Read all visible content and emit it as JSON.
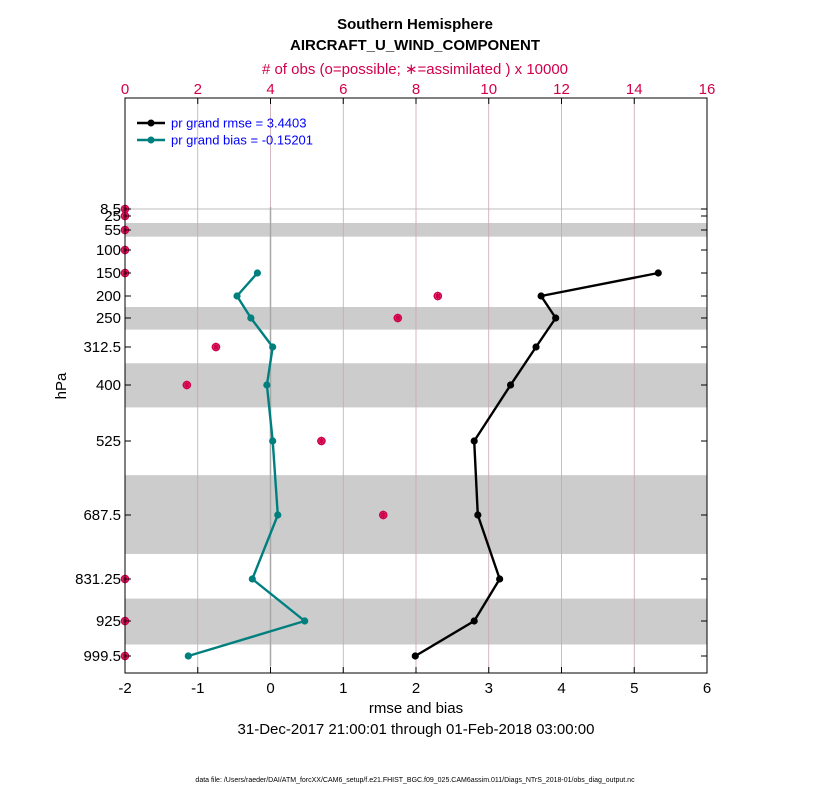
{
  "chart_data": {
    "type": "line",
    "title": "Southern Hemisphere",
    "subtitle": "AIRCRAFT_U_WIND_COMPONENT",
    "top_axis_label": "# of obs (o=possible; ∗=assimilated ) x 10000",
    "xlabel": "rmse and bias",
    "ylabel": "hPa",
    "date_range": "31-Dec-2017 21:00:01 through 01-Feb-2018 03:00:00",
    "footnote": "data file: /Users/raeder/DAI/ATM_forcXX/CAM6_setup/f.e21.FHIST_BGC.f09_025.CAM6assim.011/Diags_NTrS_2018-01/obs_diag_output.nc",
    "xlim": [
      -2,
      6
    ],
    "x_ticks": [
      "-2",
      "-1",
      "0",
      "1",
      "2",
      "3",
      "4",
      "5",
      "6"
    ],
    "top_xlim": [
      0,
      16
    ],
    "top_ticks": [
      "0",
      "2",
      "4",
      "6",
      "8",
      "10",
      "12",
      "14",
      "16"
    ],
    "levels": [
      8.5,
      25,
      55,
      100,
      150,
      200,
      250,
      312.5,
      400,
      525,
      687.5,
      831.25,
      925,
      999.5
    ],
    "level_labels": [
      "8.5",
      "25",
      "55",
      "100",
      "150",
      "200",
      "250",
      "312.5",
      "400",
      "525",
      "687.5",
      "831.25",
      "925",
      "999.5"
    ],
    "shaded_bands": [
      [
        7,
        10
      ],
      [
        40,
        70
      ],
      [
        225,
        275
      ],
      [
        350,
        450
      ],
      [
        600,
        775
      ],
      [
        875,
        975
      ]
    ],
    "grid": true,
    "legend_position": "top-left",
    "series": [
      {
        "name": "rmse",
        "legend": "pr grand rmse = 3.4403",
        "color": "#000000",
        "points": [
          [
            5.33,
            150
          ],
          [
            3.72,
            200
          ],
          [
            3.92,
            250
          ],
          [
            3.65,
            312.5
          ],
          [
            3.3,
            400
          ],
          [
            2.8,
            525
          ],
          [
            2.85,
            687.5
          ],
          [
            3.15,
            831.25
          ],
          [
            2.8,
            925
          ],
          [
            1.99,
            999.5
          ]
        ]
      },
      {
        "name": "bias",
        "legend": "pr grand bias = -0.15201",
        "color": "#007f7f",
        "points": [
          [
            -0.18,
            150
          ],
          [
            -0.46,
            200
          ],
          [
            -0.27,
            250
          ],
          [
            0.03,
            312.5
          ],
          [
            -0.05,
            400
          ],
          [
            0.03,
            525
          ],
          [
            0.1,
            687.5
          ],
          [
            -0.25,
            831.25
          ],
          [
            0.47,
            925
          ],
          [
            -1.13,
            999.5
          ]
        ]
      }
    ],
    "obs_counts": {
      "color": "#d2004b",
      "units": "x 10000",
      "points": [
        [
          0,
          8.5
        ],
        [
          0,
          25
        ],
        [
          0,
          55
        ],
        [
          0,
          100
        ],
        [
          0,
          150
        ],
        [
          8.6,
          200
        ],
        [
          7.5,
          250
        ],
        [
          2.5,
          312.5
        ],
        [
          1.7,
          400
        ],
        [
          5.4,
          525
        ],
        [
          7.1,
          687.5
        ],
        [
          0,
          831.25
        ],
        [
          0,
          925
        ],
        [
          0,
          999.5
        ]
      ]
    }
  }
}
